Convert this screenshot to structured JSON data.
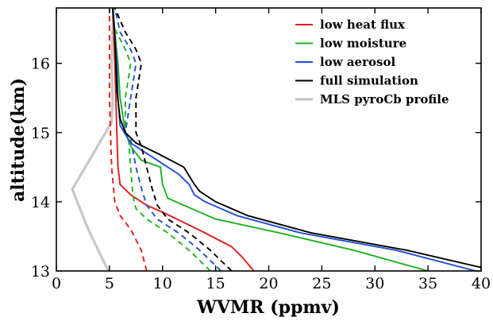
{
  "chart_data": {
    "type": "line",
    "title": "",
    "xlabel": "WVMR (ppmv)",
    "ylabel": "altitude(km)",
    "xlim": [
      0,
      40
    ],
    "ylim": [
      13,
      16.8
    ],
    "xticks": [
      0,
      5,
      10,
      15,
      20,
      25,
      30,
      35,
      40
    ],
    "yticks": [
      13,
      14,
      15,
      16
    ],
    "grid": false,
    "legend_position": "top-right",
    "series": [
      {
        "name": "low heat flux",
        "color": "#e41a1c",
        "style": "solid",
        "points": [
          [
            18.6,
            13.0
          ],
          [
            17.5,
            13.2
          ],
          [
            16.5,
            13.35
          ],
          [
            14.0,
            13.55
          ],
          [
            10.0,
            13.85
          ],
          [
            8.5,
            13.95
          ],
          [
            7.0,
            14.1
          ],
          [
            6.0,
            14.25
          ],
          [
            5.8,
            14.5
          ],
          [
            5.7,
            15.0
          ],
          [
            5.6,
            15.5
          ],
          [
            5.5,
            16.0
          ],
          [
            5.4,
            16.5
          ],
          [
            5.3,
            16.8
          ]
        ]
      },
      {
        "name": "low heat flux",
        "color": "#e41a1c",
        "style": "dashed",
        "points": [
          [
            8.5,
            13.0
          ],
          [
            8.0,
            13.3
          ],
          [
            7.0,
            13.6
          ],
          [
            6.0,
            13.8
          ],
          [
            5.5,
            14.0
          ],
          [
            5.2,
            14.5
          ],
          [
            5.1,
            15.0
          ],
          [
            5.0,
            15.5
          ],
          [
            5.0,
            16.0
          ],
          [
            5.0,
            16.8
          ]
        ]
      },
      {
        "name": "low moisture",
        "color": "#22b022",
        "style": "solid",
        "points": [
          [
            35.0,
            13.0
          ],
          [
            28.0,
            13.3
          ],
          [
            21.0,
            13.55
          ],
          [
            15.0,
            13.75
          ],
          [
            12.0,
            13.95
          ],
          [
            10.5,
            14.05
          ],
          [
            10.0,
            14.25
          ],
          [
            9.8,
            14.5
          ],
          [
            8.0,
            14.6
          ],
          [
            7.0,
            14.8
          ],
          [
            6.5,
            15.0
          ],
          [
            6.0,
            15.5
          ],
          [
            5.8,
            16.0
          ],
          [
            5.6,
            16.3
          ],
          [
            5.3,
            16.8
          ]
        ]
      },
      {
        "name": "low moisture",
        "color": "#22b022",
        "style": "dashed",
        "points": [
          [
            14.5,
            13.0
          ],
          [
            12.5,
            13.3
          ],
          [
            10.5,
            13.55
          ],
          [
            8.5,
            13.75
          ],
          [
            7.5,
            13.9
          ],
          [
            7.2,
            14.1
          ],
          [
            7.0,
            14.5
          ],
          [
            6.8,
            14.9
          ],
          [
            6.5,
            15.0
          ],
          [
            6.5,
            15.5
          ],
          [
            7.0,
            16.0
          ],
          [
            6.5,
            16.2
          ],
          [
            5.5,
            16.5
          ],
          [
            5.3,
            16.8
          ]
        ]
      },
      {
        "name": "low aerosol",
        "color": "#1f4fd6",
        "style": "solid",
        "points": [
          [
            39.5,
            13.0
          ],
          [
            32.0,
            13.3
          ],
          [
            23.0,
            13.55
          ],
          [
            17.0,
            13.8
          ],
          [
            14.0,
            14.0
          ],
          [
            13.0,
            14.1
          ],
          [
            12.5,
            14.25
          ],
          [
            11.5,
            14.4
          ],
          [
            9.0,
            14.65
          ],
          [
            7.0,
            14.85
          ],
          [
            6.0,
            15.1
          ],
          [
            5.8,
            15.5
          ],
          [
            5.7,
            16.0
          ],
          [
            5.5,
            16.4
          ],
          [
            5.3,
            16.8
          ]
        ]
      },
      {
        "name": "low aerosol",
        "color": "#1f4fd6",
        "style": "dashed",
        "points": [
          [
            15.5,
            13.0
          ],
          [
            13.5,
            13.3
          ],
          [
            11.5,
            13.55
          ],
          [
            9.5,
            13.75
          ],
          [
            8.5,
            13.95
          ],
          [
            8.0,
            14.2
          ],
          [
            7.5,
            14.5
          ],
          [
            7.0,
            14.9
          ],
          [
            6.5,
            15.0
          ],
          [
            7.0,
            15.5
          ],
          [
            7.5,
            16.0
          ],
          [
            7.0,
            16.2
          ],
          [
            6.0,
            16.45
          ],
          [
            5.5,
            16.8
          ]
        ]
      },
      {
        "name": "full simulation",
        "color": "#000000",
        "style": "solid",
        "points": [
          [
            40.0,
            13.05
          ],
          [
            33.0,
            13.3
          ],
          [
            24.0,
            13.55
          ],
          [
            18.0,
            13.8
          ],
          [
            15.0,
            14.0
          ],
          [
            13.5,
            14.15
          ],
          [
            13.0,
            14.25
          ],
          [
            12.0,
            14.5
          ],
          [
            9.5,
            14.7
          ],
          [
            7.5,
            14.85
          ],
          [
            6.5,
            15.0
          ],
          [
            6.0,
            15.2
          ],
          [
            5.7,
            15.6
          ],
          [
            5.6,
            16.0
          ],
          [
            5.5,
            16.4
          ],
          [
            5.3,
            16.8
          ]
        ]
      },
      {
        "name": "full simulation",
        "color": "#000000",
        "style": "dashed",
        "points": [
          [
            16.5,
            13.0
          ],
          [
            14.5,
            13.3
          ],
          [
            12.5,
            13.55
          ],
          [
            10.5,
            13.75
          ],
          [
            9.5,
            13.95
          ],
          [
            9.0,
            14.2
          ],
          [
            8.5,
            14.5
          ],
          [
            8.0,
            14.8
          ],
          [
            7.5,
            15.0
          ],
          [
            7.5,
            15.5
          ],
          [
            8.0,
            16.0
          ],
          [
            7.5,
            16.2
          ],
          [
            6.5,
            16.45
          ],
          [
            5.5,
            16.8
          ]
        ]
      },
      {
        "name": "MLS pyroCb profile",
        "color": "#c8c8c8",
        "style": "solid",
        "points": [
          [
            4.9,
            13.0
          ],
          [
            3.0,
            13.6
          ],
          [
            1.5,
            14.18
          ],
          [
            3.5,
            14.7
          ],
          [
            5.2,
            15.15
          ],
          [
            5.3,
            15.5
          ],
          [
            5.2,
            16.0
          ],
          [
            5.3,
            16.5
          ],
          [
            5.4,
            16.8
          ]
        ]
      }
    ],
    "legend": [
      {
        "label": "low heat flux",
        "color": "#e41a1c"
      },
      {
        "label": "low moisture",
        "color": "#22b022"
      },
      {
        "label": "low aerosol",
        "color": "#1f4fd6"
      },
      {
        "label": "full simulation",
        "color": "#000000"
      },
      {
        "label": "MLS pyroCb profile",
        "color": "#c8c8c8"
      }
    ]
  }
}
